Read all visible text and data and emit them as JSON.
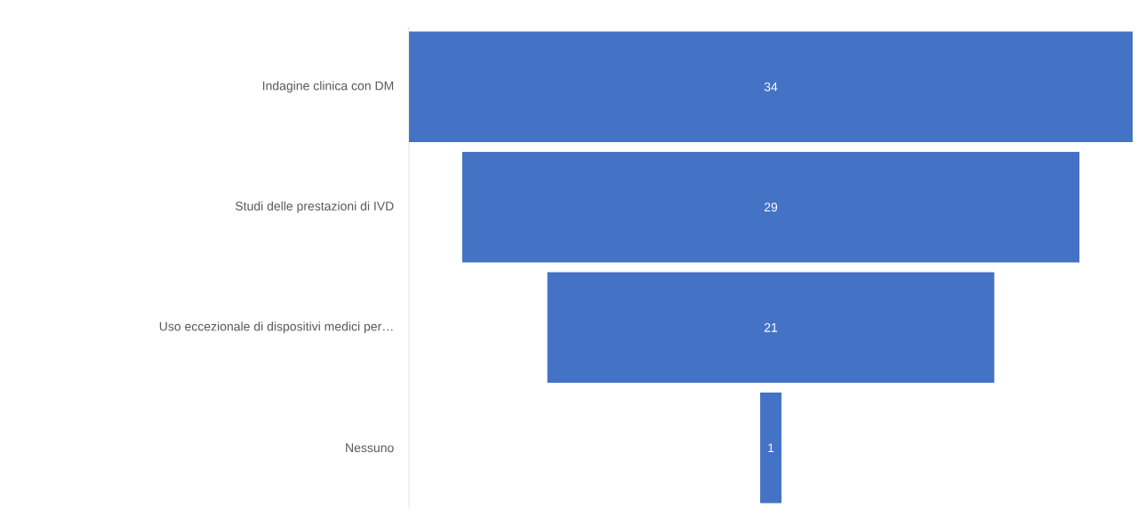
{
  "chart_data": {
    "type": "other",
    "categories": [
      "Indagine clinica con DM",
      "Studi delle prestazioni di IVD",
      "Uso eccezionale di dispositivi medici per…",
      "Nessuno"
    ],
    "values": [
      34,
      29,
      21,
      1
    ],
    "color": "#4472c4",
    "data_labels": true
  }
}
